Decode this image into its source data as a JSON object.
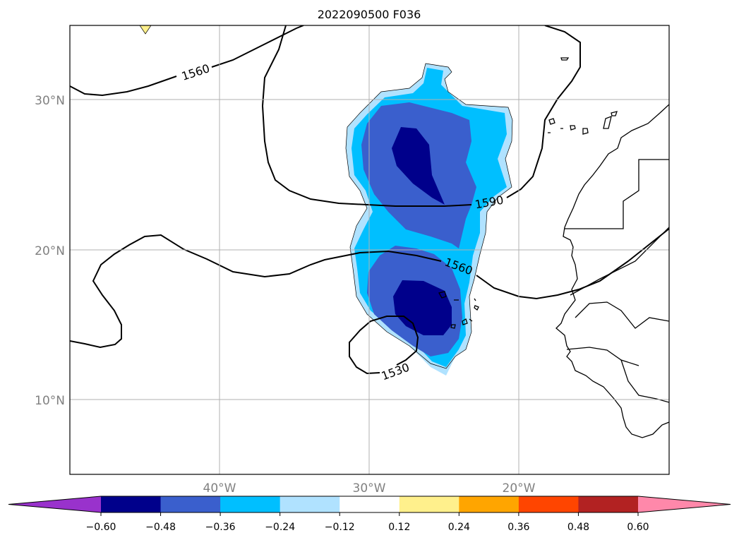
{
  "title": "2022090500 F036",
  "lat_labels": [
    "30°N",
    "20°N",
    "10°N"
  ],
  "lon_labels": [
    "40°W",
    "30°W",
    "20°W"
  ],
  "contour_labels": [
    "1560",
    "1590",
    "1560",
    "1530"
  ],
  "colorbar": {
    "ticks": [
      "−0.60",
      "−0.48",
      "−0.36",
      "−0.24",
      "−0.12",
      "0.12",
      "0.24",
      "0.36",
      "0.48",
      "0.60"
    ],
    "colors": [
      "#9932cc",
      "#00008b",
      "#3a5fcd",
      "#00bfff",
      "#b0e2ff",
      "#ffffff",
      "#fff08c",
      "#ffa500",
      "#ff4500",
      "#b22222",
      "#ff88aa"
    ]
  }
}
